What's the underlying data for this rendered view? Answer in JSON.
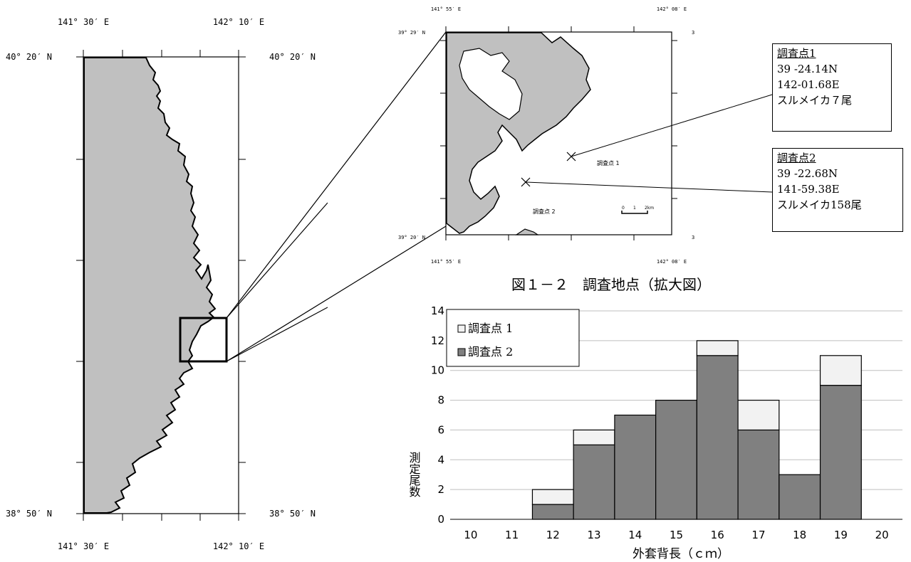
{
  "overview_map": {
    "lon_labels": [
      "141° 30′ E",
      "142° 10′ E"
    ],
    "lat_labels": [
      "40° 20′ N",
      "38° 50′ N"
    ]
  },
  "inset_map": {
    "lon_labels": [
      "141° 55′ E",
      "142° 08′ E"
    ],
    "lat_labels": [
      "39° 29′ N",
      "39° 20′ N"
    ],
    "station_labels": [
      "調査点 1",
      "調査点 2"
    ],
    "scale_labels": [
      "0",
      "1",
      "2km"
    ],
    "caption": "図１－２　調査地点（拡大図）"
  },
  "stations": [
    {
      "title": "調査点1",
      "lat": "39 -24.14N",
      "lon": "142-01.68E",
      "catch": "スルメイカ７尾"
    },
    {
      "title": "調査点2",
      "lat": "39 -22.68N",
      "lon": "141-59.38E",
      "catch": "スルメイカ158尾"
    }
  ],
  "colors": {
    "land": "#c0c0c0",
    "series1": "#f2f2f2",
    "series2": "#808080"
  },
  "chart_data": {
    "type": "bar",
    "stacked": true,
    "categories": [
      "10",
      "11",
      "12",
      "13",
      "14",
      "15",
      "16",
      "17",
      "18",
      "19",
      "20"
    ],
    "series": [
      {
        "name": "調査点 2",
        "values": [
          0,
          0,
          1,
          5,
          7,
          8,
          11,
          6,
          3,
          9,
          0
        ]
      },
      {
        "name": "調査点 1",
        "values": [
          0,
          0,
          1,
          1,
          0,
          0,
          1,
          2,
          0,
          2,
          0
        ]
      }
    ],
    "ylim": [
      0,
      14
    ],
    "yticks": [
      0,
      2,
      4,
      6,
      8,
      10,
      12,
      14
    ],
    "xlabel": "外套背長（ｃｍ）",
    "ylabel": "測定尾数",
    "grid": true,
    "legend": "top-left"
  }
}
